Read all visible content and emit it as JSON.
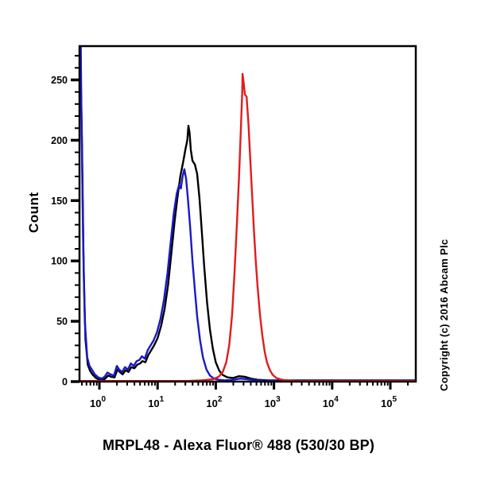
{
  "title": "MRPL48 - Alexa Fluor® 488 (530/30 BP)",
  "ylabel": "Count",
  "copyright": "Copyright (c) 2016 Abcam Plc",
  "chart_data": {
    "type": "line",
    "subtype": "flow-cytometry-histogram",
    "title": "MRPL48 - Alexa Fluor® 488 (530/30 BP)",
    "xlabel": "MRPL48 - Alexa Fluor® 488 (530/30 BP)",
    "ylabel": "Count",
    "x_scale": "log10",
    "x_log_range": [
      -0.342,
      5.437
    ],
    "x_tick_exponents": [
      0,
      1,
      2,
      3,
      4,
      5
    ],
    "x_tick_base": "10",
    "y_ticks": [
      0,
      50,
      100,
      150,
      200,
      250
    ],
    "y_minor_step": 10,
    "ylim": [
      0,
      278
    ],
    "grid": false,
    "legend": "none",
    "axis_color": "#000000",
    "series": [
      {
        "name": "black-curve",
        "color": "#000000",
        "points_log10x_count": [
          [
            -0.335,
            278
          ],
          [
            -0.33,
            278
          ],
          [
            -0.3,
            200
          ],
          [
            -0.27,
            90
          ],
          [
            -0.24,
            35
          ],
          [
            -0.2,
            14
          ],
          [
            -0.16,
            9
          ],
          [
            -0.12,
            6
          ],
          [
            -0.06,
            3
          ],
          [
            0.0,
            1.5
          ],
          [
            0.05,
            1
          ],
          [
            0.1,
            2.5
          ],
          [
            0.15,
            5
          ],
          [
            0.2,
            4
          ],
          [
            0.26,
            3.5
          ],
          [
            0.31,
            10
          ],
          [
            0.35,
            8
          ],
          [
            0.4,
            6
          ],
          [
            0.45,
            9.5
          ],
          [
            0.5,
            8
          ],
          [
            0.55,
            12
          ],
          [
            0.6,
            11
          ],
          [
            0.65,
            14
          ],
          [
            0.7,
            15
          ],
          [
            0.74,
            17
          ],
          [
            0.79,
            16
          ],
          [
            0.84,
            22
          ],
          [
            0.89,
            26
          ],
          [
            0.94,
            30
          ],
          [
            1.0,
            36
          ],
          [
            1.06,
            46
          ],
          [
            1.12,
            60
          ],
          [
            1.18,
            80
          ],
          [
            1.24,
            108
          ],
          [
            1.29,
            132
          ],
          [
            1.34,
            152
          ],
          [
            1.39,
            170
          ],
          [
            1.44,
            182
          ],
          [
            1.48,
            193
          ],
          [
            1.51,
            200
          ],
          [
            1.53,
            212
          ],
          [
            1.55,
            206
          ],
          [
            1.57,
            192
          ],
          [
            1.6,
            183
          ],
          [
            1.64,
            180
          ],
          [
            1.68,
            172
          ],
          [
            1.72,
            152
          ],
          [
            1.76,
            124
          ],
          [
            1.8,
            96
          ],
          [
            1.85,
            66
          ],
          [
            1.9,
            43
          ],
          [
            1.95,
            27
          ],
          [
            2.0,
            16
          ],
          [
            2.06,
            9
          ],
          [
            2.12,
            5.5
          ],
          [
            2.2,
            3.5
          ],
          [
            2.3,
            3
          ],
          [
            2.4,
            4.5
          ],
          [
            2.5,
            4
          ],
          [
            2.6,
            2.5
          ],
          [
            2.72,
            1.5
          ],
          [
            2.9,
            1
          ],
          [
            3.2,
            1
          ],
          [
            3.6,
            1
          ],
          [
            4.0,
            1
          ],
          [
            4.5,
            1
          ],
          [
            5.0,
            1
          ],
          [
            5.437,
            1
          ]
        ]
      },
      {
        "name": "blue-curve",
        "color": "#1a18c8",
        "points_log10x_count": [
          [
            -0.325,
            278
          ],
          [
            -0.32,
            278
          ],
          [
            -0.31,
            230
          ],
          [
            -0.28,
            120
          ],
          [
            -0.25,
            50
          ],
          [
            -0.21,
            20
          ],
          [
            -0.17,
            13
          ],
          [
            -0.13,
            10
          ],
          [
            -0.08,
            6
          ],
          [
            -0.02,
            3.5
          ],
          [
            0.04,
            2.5
          ],
          [
            0.09,
            4
          ],
          [
            0.14,
            7.5
          ],
          [
            0.19,
            6
          ],
          [
            0.25,
            5
          ],
          [
            0.3,
            13
          ],
          [
            0.34,
            10
          ],
          [
            0.39,
            8
          ],
          [
            0.44,
            12
          ],
          [
            0.49,
            10
          ],
          [
            0.54,
            15
          ],
          [
            0.59,
            13
          ],
          [
            0.64,
            17
          ],
          [
            0.69,
            18
          ],
          [
            0.73,
            21
          ],
          [
            0.78,
            19
          ],
          [
            0.83,
            26
          ],
          [
            0.88,
            30
          ],
          [
            0.93,
            34
          ],
          [
            0.99,
            41
          ],
          [
            1.05,
            52
          ],
          [
            1.11,
            68
          ],
          [
            1.17,
            90
          ],
          [
            1.23,
            118
          ],
          [
            1.28,
            140
          ],
          [
            1.33,
            156
          ],
          [
            1.37,
            163
          ],
          [
            1.4,
            160
          ],
          [
            1.43,
            170
          ],
          [
            1.46,
            176
          ],
          [
            1.49,
            168
          ],
          [
            1.52,
            152
          ],
          [
            1.56,
            128
          ],
          [
            1.6,
            100
          ],
          [
            1.64,
            76
          ],
          [
            1.68,
            54
          ],
          [
            1.73,
            34
          ],
          [
            1.78,
            20
          ],
          [
            1.84,
            10
          ],
          [
            1.9,
            5
          ],
          [
            1.97,
            2.5
          ],
          [
            2.05,
            1.5
          ],
          [
            2.15,
            1
          ],
          [
            2.3,
            1.5
          ],
          [
            2.42,
            2.5
          ],
          [
            2.55,
            2
          ],
          [
            2.7,
            1
          ],
          [
            3.0,
            0.8
          ],
          [
            3.5,
            0.8
          ],
          [
            4.0,
            0.8
          ],
          [
            4.6,
            0.8
          ],
          [
            5.437,
            0.8
          ]
        ]
      },
      {
        "name": "red-curve",
        "color": "#e31b1b",
        "points_log10x_count": [
          [
            -0.342,
            0.5
          ],
          [
            0.5,
            0.5
          ],
          [
            1.0,
            0.5
          ],
          [
            1.5,
            0.5
          ],
          [
            1.75,
            1
          ],
          [
            1.95,
            2
          ],
          [
            2.05,
            4
          ],
          [
            2.12,
            8
          ],
          [
            2.18,
            16
          ],
          [
            2.23,
            30
          ],
          [
            2.28,
            55
          ],
          [
            2.32,
            88
          ],
          [
            2.36,
            128
          ],
          [
            2.4,
            170
          ],
          [
            2.43,
            208
          ],
          [
            2.455,
            240
          ],
          [
            2.46,
            255
          ],
          [
            2.48,
            247
          ],
          [
            2.5,
            238
          ],
          [
            2.53,
            236
          ],
          [
            2.56,
            215
          ],
          [
            2.6,
            178
          ],
          [
            2.63,
            150
          ],
          [
            2.66,
            122
          ],
          [
            2.69,
            98
          ],
          [
            2.72,
            78
          ],
          [
            2.76,
            55
          ],
          [
            2.8,
            38
          ],
          [
            2.84,
            25
          ],
          [
            2.88,
            16
          ],
          [
            2.93,
            9.5
          ],
          [
            2.98,
            5.5
          ],
          [
            3.04,
            3
          ],
          [
            3.12,
            1.8
          ],
          [
            3.22,
            1
          ],
          [
            3.38,
            0.6
          ],
          [
            3.6,
            0.5
          ],
          [
            4.0,
            0.5
          ],
          [
            4.5,
            0.5
          ],
          [
            5.0,
            0.5
          ],
          [
            5.437,
            0.5
          ]
        ]
      }
    ]
  }
}
